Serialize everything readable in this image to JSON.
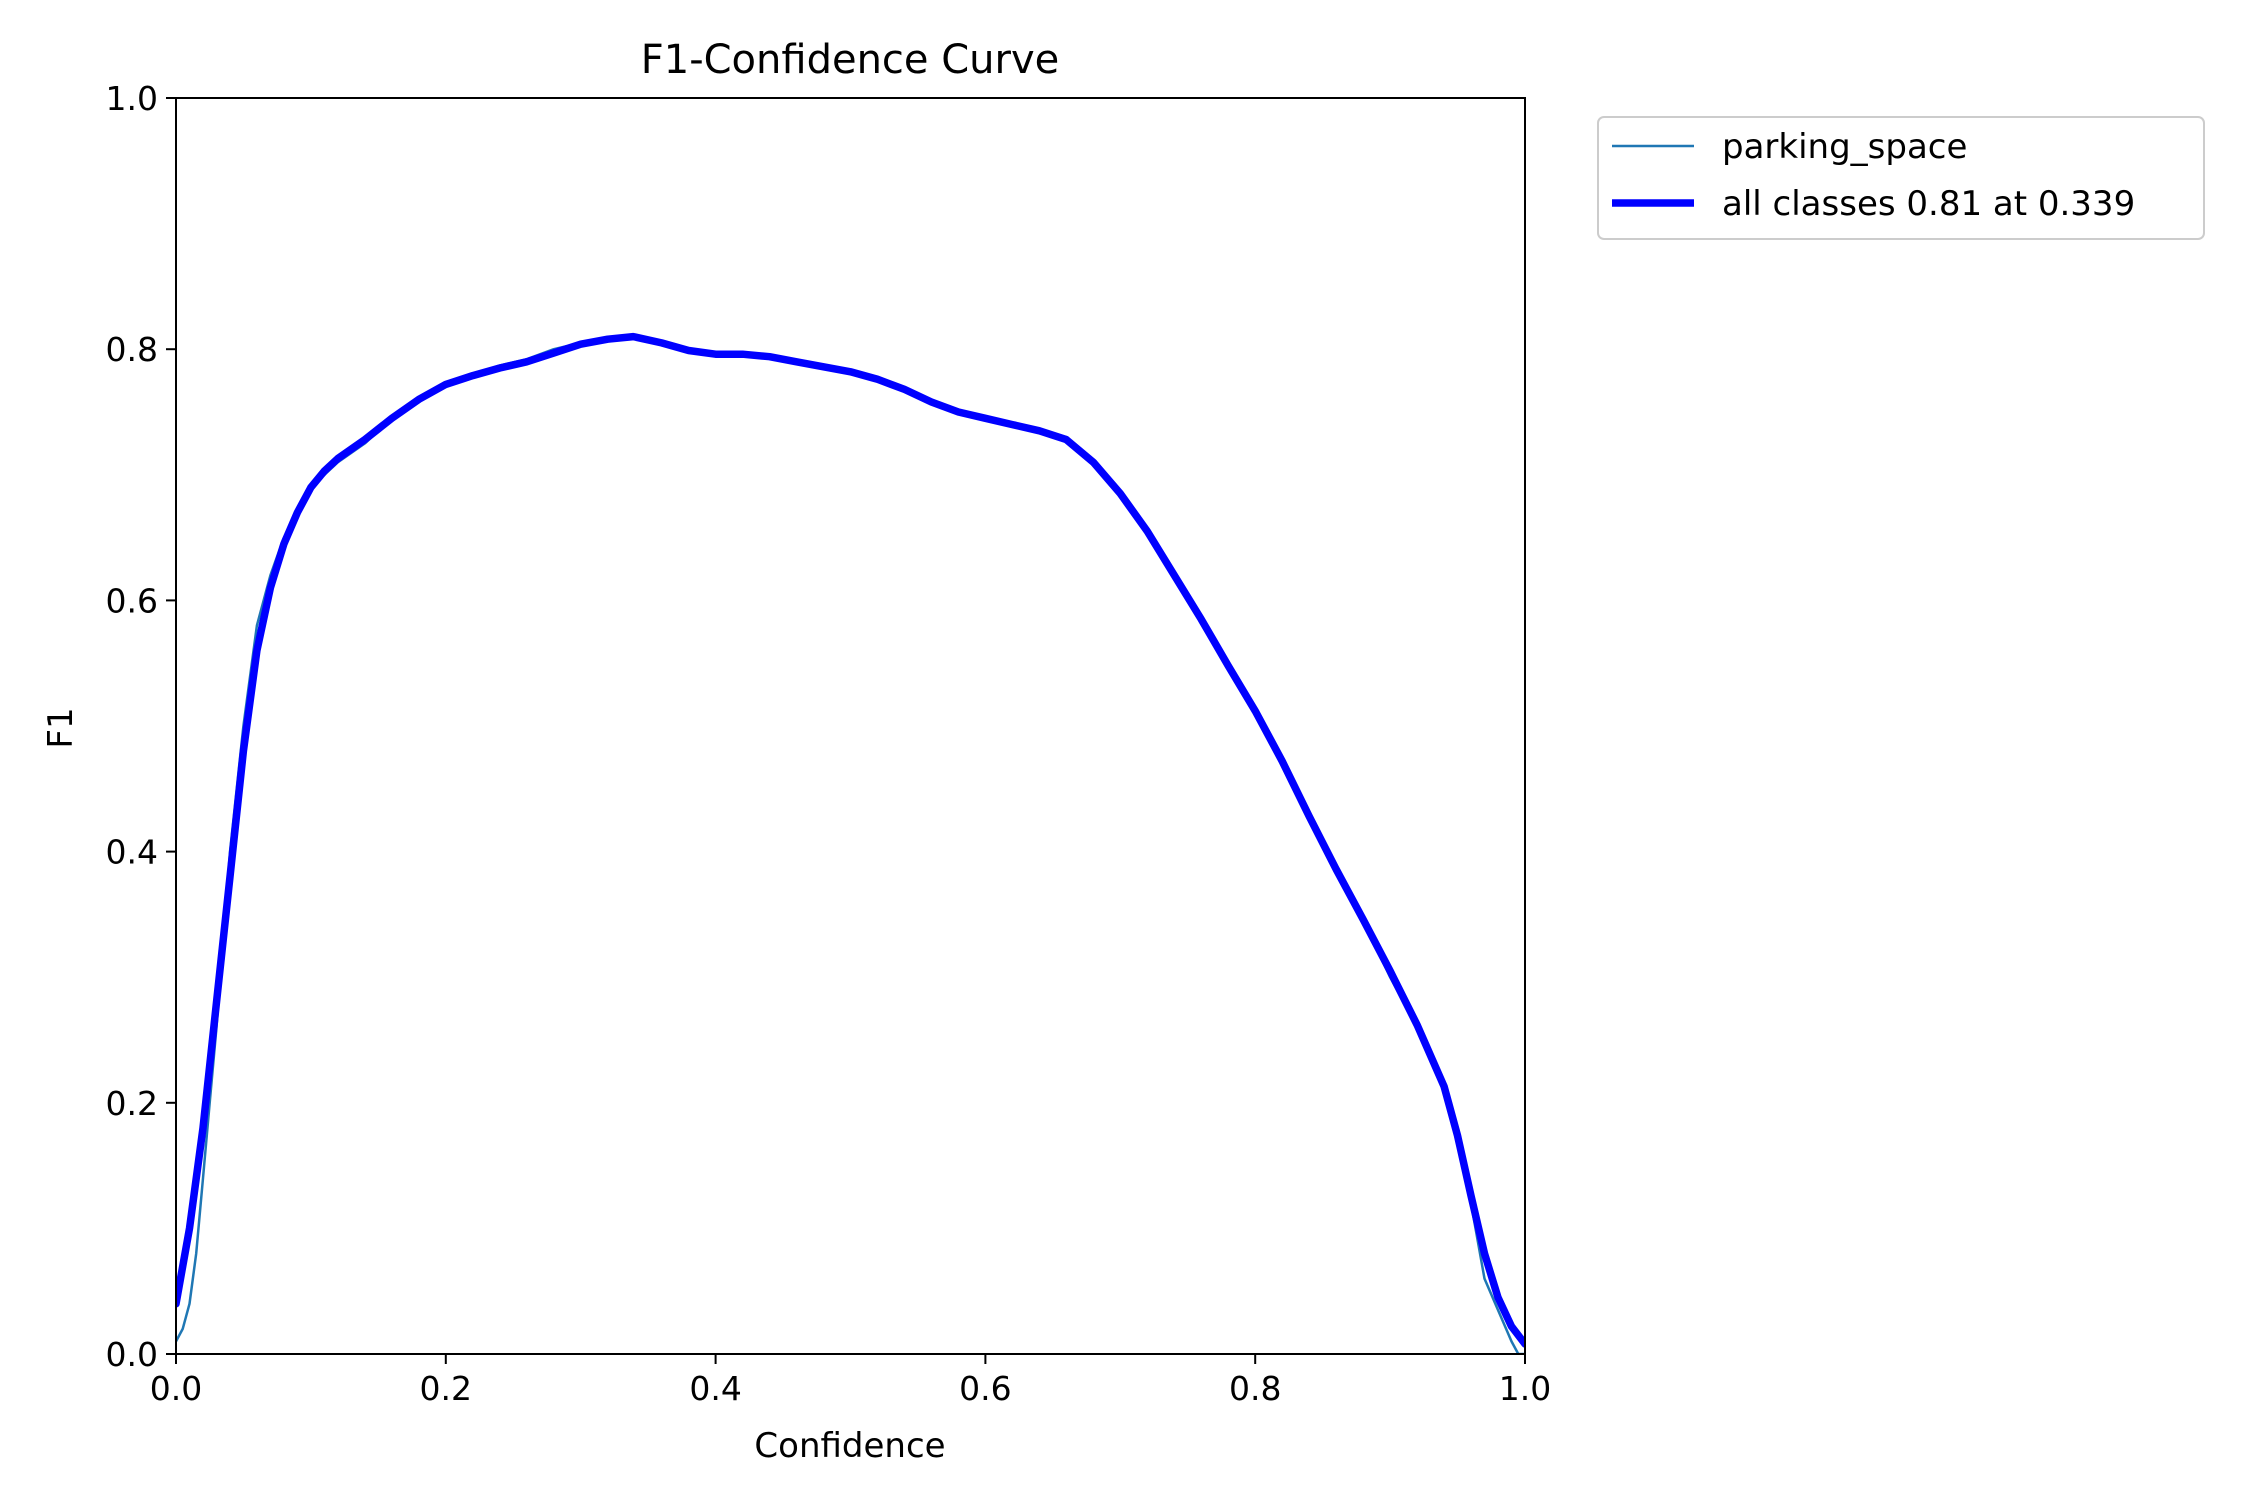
{
  "chart_data": {
    "type": "line",
    "title": "F1-Confidence Curve",
    "xlabel": "Confidence",
    "ylabel": "F1",
    "xlim": [
      0.0,
      1.0
    ],
    "ylim": [
      0.0,
      1.0
    ],
    "xticks": [
      "0.0",
      "0.2",
      "0.4",
      "0.6",
      "0.8",
      "1.0"
    ],
    "yticks": [
      "0.0",
      "0.2",
      "0.4",
      "0.6",
      "0.8",
      "1.0"
    ],
    "grid": false,
    "legend_position": "outside-top-right",
    "series": [
      {
        "name": "parking_space",
        "color": "#1f77b4",
        "x": [
          0.0,
          0.005,
          0.01,
          0.015,
          0.02,
          0.025,
          0.03,
          0.04,
          0.05,
          0.06,
          0.07,
          0.08,
          0.09,
          0.1,
          0.11,
          0.12,
          0.14,
          0.16,
          0.18,
          0.2,
          0.22,
          0.24,
          0.26,
          0.28,
          0.3,
          0.32,
          0.339,
          0.36,
          0.38,
          0.4,
          0.42,
          0.44,
          0.46,
          0.48,
          0.5,
          0.52,
          0.54,
          0.56,
          0.58,
          0.6,
          0.62,
          0.64,
          0.66,
          0.68,
          0.7,
          0.72,
          0.74,
          0.76,
          0.78,
          0.8,
          0.82,
          0.84,
          0.86,
          0.88,
          0.9,
          0.92,
          0.94,
          0.95,
          0.96,
          0.97,
          0.98,
          0.99,
          0.995,
          1.0
        ],
        "y": [
          0.01,
          0.02,
          0.04,
          0.08,
          0.14,
          0.2,
          0.26,
          0.4,
          0.5,
          0.58,
          0.62,
          0.65,
          0.67,
          0.69,
          0.7,
          0.71,
          0.725,
          0.745,
          0.76,
          0.773,
          0.78,
          0.787,
          0.792,
          0.8,
          0.805,
          0.808,
          0.81,
          0.805,
          0.8,
          0.796,
          0.795,
          0.793,
          0.789,
          0.786,
          0.783,
          0.776,
          0.768,
          0.758,
          0.75,
          0.745,
          0.74,
          0.735,
          0.73,
          0.71,
          0.685,
          0.655,
          0.62,
          0.585,
          0.55,
          0.515,
          0.475,
          0.43,
          0.385,
          0.345,
          0.3,
          0.26,
          0.21,
          0.17,
          0.12,
          0.06,
          0.035,
          0.01,
          0.0,
          0.0
        ]
      },
      {
        "name": "all classes 0.81 at 0.339",
        "color": "#0000ff",
        "x": [
          0.0,
          0.01,
          0.02,
          0.03,
          0.04,
          0.05,
          0.06,
          0.07,
          0.08,
          0.09,
          0.1,
          0.11,
          0.12,
          0.14,
          0.16,
          0.18,
          0.2,
          0.22,
          0.24,
          0.26,
          0.28,
          0.3,
          0.32,
          0.339,
          0.36,
          0.38,
          0.4,
          0.42,
          0.44,
          0.46,
          0.48,
          0.5,
          0.52,
          0.54,
          0.56,
          0.58,
          0.6,
          0.62,
          0.64,
          0.66,
          0.68,
          0.7,
          0.72,
          0.74,
          0.76,
          0.78,
          0.8,
          0.82,
          0.84,
          0.86,
          0.88,
          0.9,
          0.92,
          0.94,
          0.95,
          0.96,
          0.97,
          0.98,
          0.99,
          1.0
        ],
        "y": [
          0.04,
          0.1,
          0.18,
          0.28,
          0.38,
          0.48,
          0.56,
          0.61,
          0.645,
          0.67,
          0.69,
          0.703,
          0.713,
          0.728,
          0.745,
          0.76,
          0.772,
          0.779,
          0.785,
          0.79,
          0.797,
          0.804,
          0.808,
          0.81,
          0.805,
          0.799,
          0.796,
          0.796,
          0.794,
          0.79,
          0.786,
          0.782,
          0.776,
          0.768,
          0.758,
          0.75,
          0.745,
          0.74,
          0.735,
          0.728,
          0.71,
          0.685,
          0.655,
          0.62,
          0.585,
          0.548,
          0.512,
          0.472,
          0.428,
          0.386,
          0.346,
          0.305,
          0.262,
          0.213,
          0.174,
          0.126,
          0.08,
          0.045,
          0.022,
          0.008
        ]
      }
    ]
  }
}
